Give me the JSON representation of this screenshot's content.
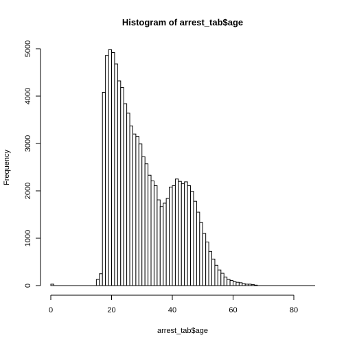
{
  "chart_data": {
    "type": "bar",
    "title": "Histogram of arrest_tab$age",
    "xlabel": "arrest_tab$age",
    "ylabel": "Frequency",
    "xlim": [
      0,
      87
    ],
    "ylim": [
      0,
      5000
    ],
    "bin_width": 1,
    "x_ticks": [
      0,
      20,
      40,
      60,
      80
    ],
    "y_ticks": [
      0,
      1000,
      2000,
      3000,
      4000,
      5000
    ],
    "bins_start": [
      0,
      1,
      2,
      3,
      4,
      5,
      6,
      7,
      8,
      9,
      10,
      11,
      12,
      13,
      14,
      15,
      16,
      17,
      18,
      19,
      20,
      21,
      22,
      23,
      24,
      25,
      26,
      27,
      28,
      29,
      30,
      31,
      32,
      33,
      34,
      35,
      36,
      37,
      38,
      39,
      40,
      41,
      42,
      43,
      44,
      45,
      46,
      47,
      48,
      49,
      50,
      51,
      52,
      53,
      54,
      55,
      56,
      57,
      58,
      59,
      60,
      61,
      62,
      63,
      64,
      65,
      66,
      67,
      68,
      69,
      70,
      71,
      72,
      73,
      74,
      75,
      76,
      77,
      78,
      79,
      80,
      81,
      82,
      83,
      84,
      85,
      86
    ],
    "values": [
      30,
      0,
      0,
      0,
      0,
      0,
      0,
      0,
      0,
      0,
      0,
      0,
      0,
      0,
      0,
      130,
      250,
      4080,
      4860,
      4980,
      4920,
      4680,
      4320,
      4180,
      3840,
      3640,
      3370,
      3200,
      3150,
      2990,
      2720,
      2570,
      2330,
      2210,
      2110,
      1810,
      1670,
      1740,
      1840,
      2080,
      2110,
      2250,
      2200,
      2150,
      2190,
      2110,
      1990,
      1780,
      1550,
      1330,
      1100,
      920,
      720,
      560,
      430,
      330,
      260,
      180,
      130,
      110,
      80,
      70,
      60,
      40,
      30,
      30,
      20,
      10,
      0,
      0,
      0,
      0,
      0,
      0,
      0,
      0,
      0,
      0,
      0,
      0,
      0,
      0,
      0,
      0,
      0,
      0,
      0
    ]
  }
}
